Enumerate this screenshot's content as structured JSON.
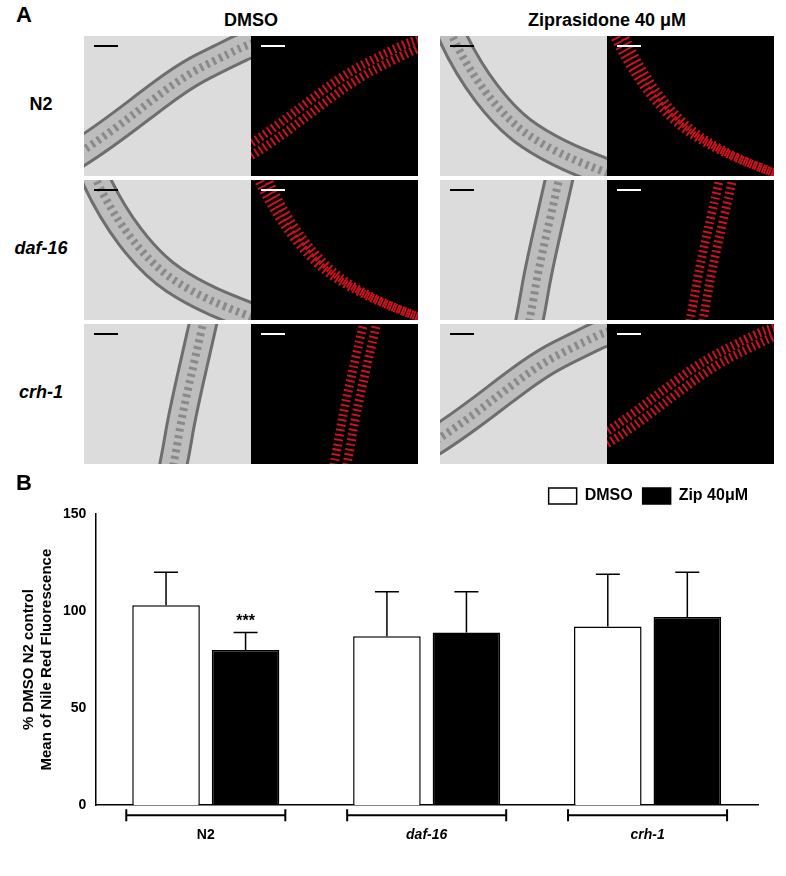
{
  "panel_a": {
    "label": "A",
    "columns": [
      "DMSO",
      "Ziprasidone 40 μM"
    ],
    "rows": [
      "N2",
      "daf-16",
      "crh-1"
    ]
  },
  "chart_data": {
    "panel_label": "B",
    "type": "bar",
    "categories": [
      "N2",
      "daf-16",
      "crh-1"
    ],
    "y_label": [
      "% DMSO N2 control",
      "Mean of Nile Red Fluorescence"
    ],
    "series": [
      {
        "name": "DMSO",
        "color": "#ffffff",
        "values": [
          103,
          87,
          92
        ],
        "errors": [
          17,
          23,
          27
        ]
      },
      {
        "name": "Zip 40μM",
        "color": "#000000",
        "values": [
          80,
          89,
          97
        ],
        "errors": [
          9,
          21,
          23
        ]
      }
    ],
    "annotations": [
      {
        "text": "***",
        "category": "N2",
        "series": "Zip 40μM"
      }
    ],
    "ylim": [
      0,
      150
    ],
    "yticks": [
      0,
      50,
      100,
      150
    ],
    "grid": false,
    "legend": "top-right"
  }
}
